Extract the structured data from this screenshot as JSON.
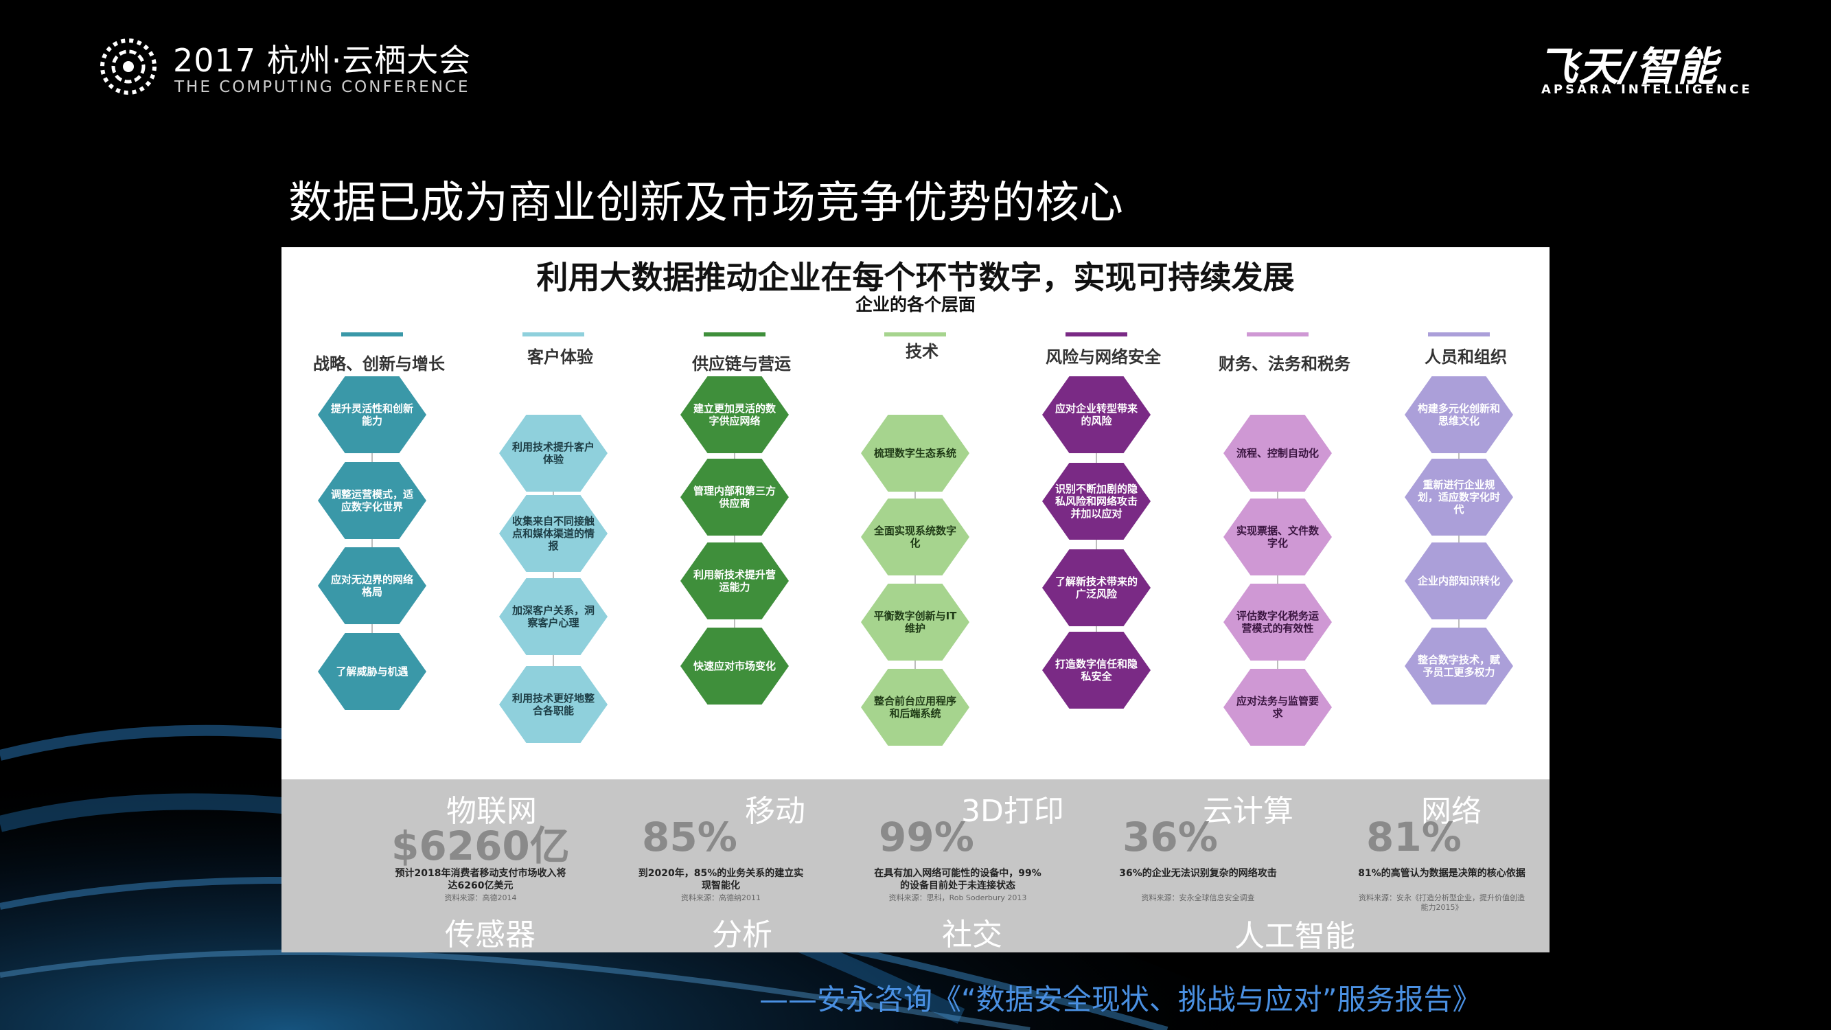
{
  "header": {
    "conference_title": "2017 杭州·云栖大会",
    "conference_subtitle": "THE COMPUTING CONFERENCE",
    "brand_main": "飞天/智能",
    "brand_sub": "APSARA INTELLIGENCE"
  },
  "slide_title": "数据已成为商业创新及市场竞争优势的核心",
  "figure": {
    "title": "利用大数据推动企业在每个环节数字，实现可持续发展",
    "subtitle": "企业的各个层面",
    "columns": [
      {
        "title": "战略、创新与增长",
        "color": "#3a98a8",
        "text_color": "#ffffff",
        "items": [
          "提升灵活性和创新能力",
          "调整运营模式，适应数字化世界",
          "应对无边界的网络格局",
          "了解威胁与机遇"
        ]
      },
      {
        "title": "客户体验",
        "color": "#8fd0dc",
        "text_color": "#1d3d45",
        "items": [
          "利用技术提升客户体验",
          "收集来自不同接触点和媒体渠道的情报",
          "加深客户关系，洞察客户心理",
          "利用技术更好地整合各职能"
        ]
      },
      {
        "title": "供应链与营运",
        "color": "#3f8f3b",
        "text_color": "#ffffff",
        "items": [
          "建立更加灵活的数字供应网络",
          "管理内部和第三方供应商",
          "利用新技术提升营运能力",
          "快速应对市场变化"
        ]
      },
      {
        "title": "技术",
        "color": "#a6d48e",
        "text_color": "#1f3a16",
        "items": [
          "梳理数字生态系统",
          "全面实现系统数字化",
          "平衡数字创新与IT维护",
          "整合前台应用程序和后端系统"
        ]
      },
      {
        "title": "风险与网络安全",
        "color": "#7a2a85",
        "text_color": "#ffffff",
        "items": [
          "应对企业转型带来的风险",
          "识别不断加剧的隐私风险和网络攻击并加以应对",
          "了解新技术带来的广泛风险",
          "打造数字信任和隐私安全"
        ]
      },
      {
        "title": "财务、法务和税务",
        "color": "#cf98d4",
        "text_color": "#3a1540",
        "items": [
          "流程、控制自动化",
          "实现票据、文件数字化",
          "评估数字化税务运营模式的有效性",
          "应对法务与监管要求"
        ]
      },
      {
        "title": "人员和组织",
        "color": "#ab9fd9",
        "text_color": "#ffffff",
        "items": [
          "构建多元化创新和思维文化",
          "重新进行企业规划，适应数字化时代",
          "企业内部知识转化",
          "整合数字技术，赋予员工更多权力"
        ]
      }
    ],
    "tech_labels_top": [
      "物联网",
      "移动",
      "3D打印",
      "云计算",
      "网络"
    ],
    "tech_labels_bottom": [
      "传感器",
      "分析",
      "社交",
      "人工智能"
    ],
    "stats": [
      {
        "value": "$6260亿",
        "desc": "预计2018年消费者移动支付市场收入将达6260亿美元",
        "source": "资料来源：高德2014"
      },
      {
        "value": "85%",
        "desc": "到2020年，85%的业务关系的建立实现智能化",
        "source": "资料来源：高德纳2011"
      },
      {
        "value": "99%",
        "desc": "在具有加入网络可能性的设备中，99%的设备目前处于未连接状态",
        "source": "资料来源：思科，Rob Soderbury 2013"
      },
      {
        "value": "36%",
        "desc": "36%的企业无法识别复杂的网络攻击",
        "source": "资料来源：安永全球信息安全调查"
      },
      {
        "value": "81%",
        "desc": "81%的高管认为数据是决策的核心依据",
        "source": "资料来源：安永《打造分析型企业，提升价值创造能力2015》"
      }
    ]
  },
  "footer_quote": "——安永咨询《“数据安全现状、挑战与应对”服务报告》"
}
